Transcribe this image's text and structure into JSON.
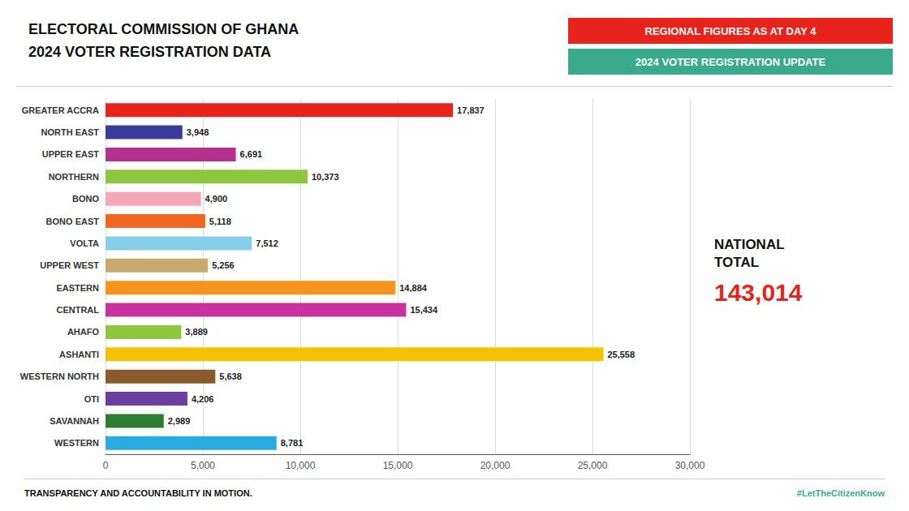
{
  "chart_data": {
    "type": "bar",
    "orientation": "horizontal",
    "title": "ELECTORAL COMMISSION OF GHANA",
    "subtitle": "2024 VOTER REGISTRATION DATA",
    "categories": [
      "GREATER ACCRA",
      "NORTH EAST",
      "UPPER EAST",
      "NORTHERN",
      "BONO",
      "BONO EAST",
      "VOLTA",
      "UPPER WEST",
      "EASTERN",
      "CENTRAL",
      "AHAFO",
      "ASHANTI",
      "WESTERN NORTH",
      "OTI",
      "SAVANNAH",
      "WESTERN"
    ],
    "values": [
      17837,
      3948,
      6691,
      10373,
      4900,
      5118,
      7512,
      5256,
      14884,
      15434,
      3889,
      25558,
      5638,
      4206,
      2989,
      8781
    ],
    "value_labels": [
      "17,837",
      "3,948",
      "6,691",
      "10,373",
      "4,900",
      "5,118",
      "7,512",
      "5,256",
      "14,884",
      "15,434",
      "3,889",
      "25,558",
      "5,638",
      "4,206",
      "2,989",
      "8,781"
    ],
    "data_labels": true,
    "colors": [
      "#e8231c",
      "#3a3a9c",
      "#b5318e",
      "#8dc63f",
      "#f7a8b8",
      "#f26522",
      "#87ceeb",
      "#c8a96e",
      "#f7941d",
      "#c832a0",
      "#8dc63f",
      "#f5c200",
      "#8b5a2b",
      "#6a3fa0",
      "#2e7d32",
      "#29abe2"
    ],
    "xlim": [
      0,
      30000
    ],
    "xticks": [
      0,
      {
        "value": 5000,
        "label": "5,000"
      },
      {
        "value": 10000,
        "label": "10,000"
      },
      {
        "value": 15000,
        "label": "15,000"
      },
      {
        "value": 20000,
        "label": "20,000"
      },
      {
        "value": 25000,
        "label": "25,000"
      },
      {
        "value": 30000,
        "label": "30,000"
      }
    ],
    "grid": true,
    "annotations": [
      {
        "text": "REGIONAL FIGURES AS AT DAY 4",
        "color": "#e8231c"
      },
      {
        "text": "2024 VOTER REGISTRATION UPDATE",
        "color": "#3aaa8c"
      },
      {
        "text": "NATIONAL\nTOTAL"
      },
      {
        "text": "143,014",
        "color": "#e8231c"
      },
      {
        "text": "TRANSPARENCY AND ACCOUNTABILITY IN MOTION."
      },
      {
        "text": "#LetTheCitizenKnow",
        "color": "#3aaa8c"
      }
    ]
  }
}
